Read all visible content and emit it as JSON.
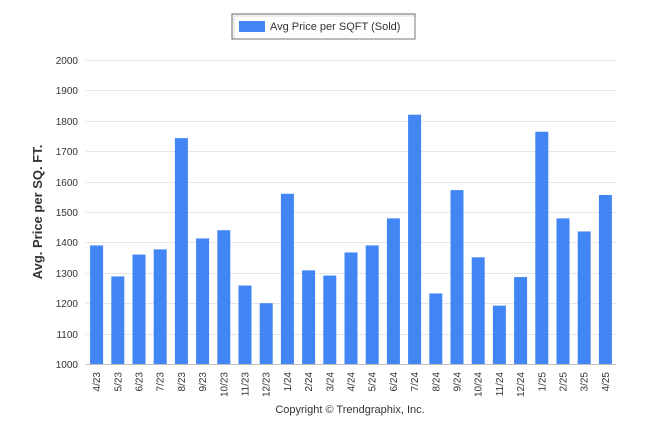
{
  "chart_data": {
    "type": "bar",
    "categories": [
      "4/23",
      "5/23",
      "6/23",
      "7/23",
      "8/23",
      "9/23",
      "10/23",
      "11/23",
      "12/23",
      "1/24",
      "2/24",
      "3/24",
      "4/24",
      "5/24",
      "6/24",
      "7/24",
      "8/24",
      "9/24",
      "10/24",
      "11/24",
      "12/24",
      "1/25",
      "2/25",
      "3/25",
      "4/25"
    ],
    "series": [
      {
        "name": "Avg Price per SQFT (Sold)",
        "color": "#4285f4",
        "values": [
          1390,
          1288,
          1360,
          1377,
          1743,
          1413,
          1440,
          1258,
          1200,
          1560,
          1308,
          1291,
          1367,
          1390,
          1479,
          1820,
          1232,
          1572,
          1351,
          1192,
          1286,
          1764,
          1479,
          1436,
          1556
        ]
      }
    ],
    "ylabel": "Avg. Price per SQ. FT.",
    "xlabel": "",
    "ylim": [
      1000,
      2000
    ],
    "yticks": [
      1000,
      1100,
      1200,
      1300,
      1400,
      1500,
      1600,
      1700,
      1800,
      1900,
      2000
    ],
    "grid": true,
    "legend": "top-center"
  },
  "legend": {
    "label": "Avg Price per SQFT (Sold)"
  },
  "credit": "Copyright © Trendgraphix, Inc.",
  "colors": {
    "bar": "#4285f4",
    "grid": "#e6e6e6",
    "axis": "#c0c0c0",
    "text": "#333333"
  }
}
